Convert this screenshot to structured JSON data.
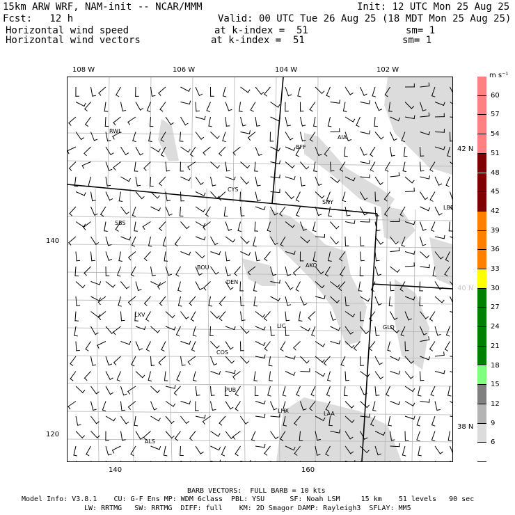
{
  "header": {
    "line1_left": "15km ARW WRF, NAM-init -- NCAR/MMM",
    "line1_right": "Init: 12 UTC Mon 25 Aug 25",
    "line2_left": "Fcst:   12 h",
    "line2_right": "Valid: 00 UTC Tue 26 Aug 25 (18 MDT Mon 25 Aug 25)",
    "field1": "Horizontal wind speed",
    "field1_k": "at k-index =  51",
    "field1_sm": "sm= 1",
    "field2": "Horizontal wind vectors",
    "field2_k": "at k-index =  51",
    "field2_sm": "sm= 1"
  },
  "top_lon_labels": [
    "108 W",
    "106 W",
    "104 W",
    "102 W"
  ],
  "right_lat_labels": [
    "42 N",
    "40 N",
    "38 N"
  ],
  "left_grid_labels": [
    "140",
    "120"
  ],
  "bottom_grid_labels": [
    "140",
    "160"
  ],
  "cities": [
    "RWL",
    "BFF",
    "AIA",
    "CYS",
    "SNY",
    "LBF",
    "SBS",
    "BOU",
    "AKO",
    "DEN",
    "LXV",
    "LIC",
    "GLD",
    "COS",
    "PUB",
    "LHX",
    "LAA",
    "ALS"
  ],
  "colorbar": {
    "units": "m s⁻¹",
    "ticks": [
      "60",
      "57",
      "54",
      "51",
      "48",
      "45",
      "42",
      "39",
      "36",
      "33",
      "30",
      "27",
      "24",
      "21",
      "18",
      "15",
      "12",
      "9",
      "6"
    ],
    "colors": [
      "#ff8080",
      "#ff8080",
      "#ff8080",
      "#ff8080",
      "#800000",
      "#800000",
      "#800000",
      "#ff8000",
      "#ff8000",
      "#ff8000",
      "#ffff00",
      "#008000",
      "#008000",
      "#008000",
      "#008000",
      "#80ff80",
      "#808080",
      "#b4b4b4",
      "#dcdcdc",
      "#ffffff"
    ]
  },
  "footer": {
    "barb": "BARB VECTORS:  FULL BARB = 10 kts",
    "model1": "Model Info: V3.8.1    CU: G-F Ens MP: WDM 6class  PBL: YSU      SF: Noah LSM     15 km    51 levels   90 sec",
    "model2": "LW: RRTMG   SW: RRTMG  DIFF: full    KM: 2D Smagor DAMP: Rayleigh3  SFLAY: MM5"
  }
}
